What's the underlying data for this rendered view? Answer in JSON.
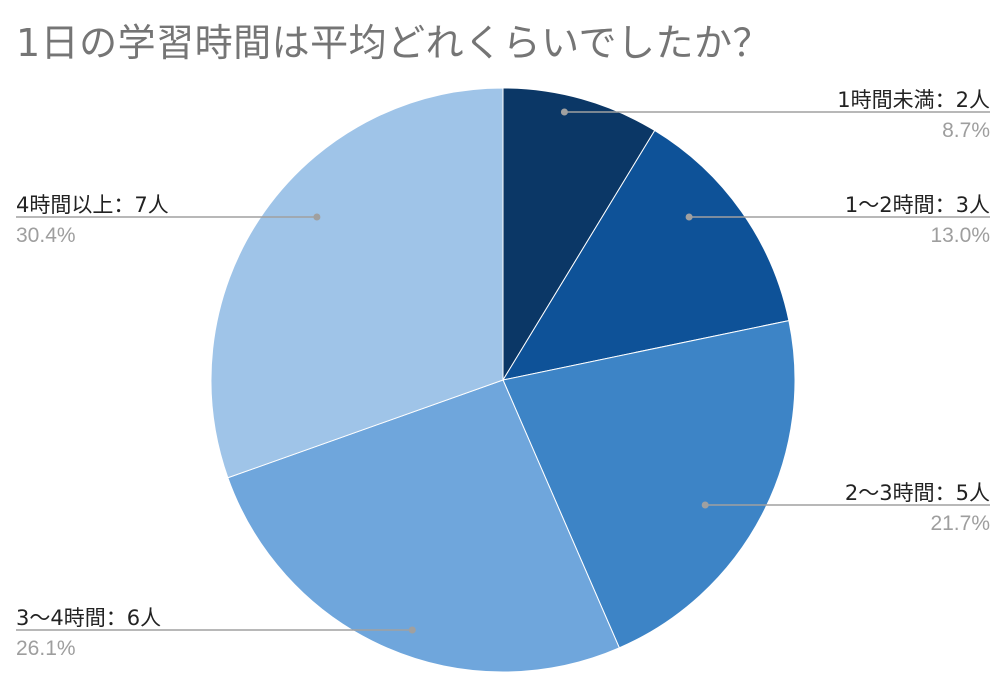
{
  "chart_data": {
    "type": "pie",
    "title": "1日の学習時間は平均どれくらいでしたか？",
    "slices": [
      {
        "label": "1時間未満：2人",
        "value": 2,
        "percent": "8.7%",
        "color": "#0b3766",
        "label_side": "right"
      },
      {
        "label": "1〜2時間：3人",
        "value": 3,
        "percent": "13.0%",
        "color": "#0e5298",
        "label_side": "right"
      },
      {
        "label": "2〜3時間：5人",
        "value": 5,
        "percent": "21.7%",
        "color": "#3d84c6",
        "label_side": "right"
      },
      {
        "label": "3〜4時間：6人",
        "value": 6,
        "percent": "26.1%",
        "color": "#6fa6dc",
        "label_side": "left"
      },
      {
        "label": "4時間以上：7人",
        "value": 7,
        "percent": "30.4%",
        "color": "#9fc4e8",
        "label_side": "left"
      }
    ],
    "start_angle": "12 o'clock",
    "direction": "clockwise",
    "leader_line_color": "#a0a0a0"
  }
}
